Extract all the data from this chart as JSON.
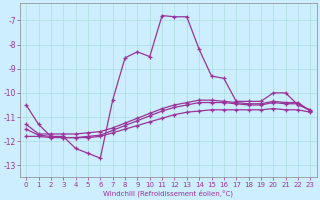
{
  "xlabel": "Windchill (Refroidissement éolien,°C)",
  "bg_color": "#cceeff",
  "grid_color": "#aadddd",
  "line_color": "#993399",
  "ylim": [
    -13.5,
    -6.3
  ],
  "xlim": [
    -0.5,
    23.5
  ],
  "yticks": [
    -13,
    -12,
    -11,
    -10,
    -9,
    -8,
    -7
  ],
  "xticks": [
    0,
    1,
    2,
    3,
    4,
    5,
    6,
    7,
    8,
    9,
    10,
    11,
    12,
    13,
    14,
    15,
    16,
    17,
    18,
    19,
    20,
    21,
    22,
    23
  ],
  "series": [
    {
      "x": [
        0,
        1,
        2,
        3,
        4,
        5,
        6,
        7,
        8,
        9,
        10,
        11,
        12,
        13,
        14,
        15,
        16,
        17,
        18,
        19,
        20,
        21,
        22,
        23
      ],
      "y": [
        -10.5,
        -11.3,
        -11.8,
        -11.8,
        -12.3,
        -12.5,
        -12.7,
        -10.3,
        -8.55,
        -8.3,
        -8.5,
        -6.8,
        -6.85,
        -6.85,
        -8.2,
        -9.3,
        -9.4,
        -10.35,
        -10.35,
        -10.35,
        -10.0,
        -10.0,
        -10.5,
        -10.7
      ]
    },
    {
      "x": [
        0,
        1,
        2,
        3,
        4,
        5,
        6,
        7,
        8,
        9,
        10,
        11,
        12,
        13,
        14,
        15,
        16,
        17,
        18,
        19,
        20,
        21,
        22,
        23
      ],
      "y": [
        -11.8,
        -11.8,
        -11.85,
        -11.85,
        -11.85,
        -11.85,
        -11.8,
        -11.65,
        -11.5,
        -11.35,
        -11.2,
        -11.05,
        -10.9,
        -10.8,
        -10.75,
        -10.7,
        -10.7,
        -10.7,
        -10.7,
        -10.7,
        -10.65,
        -10.7,
        -10.7,
        -10.8
      ]
    },
    {
      "x": [
        0,
        1,
        2,
        3,
        4,
        5,
        6,
        7,
        8,
        9,
        10,
        11,
        12,
        13,
        14,
        15,
        16,
        17,
        18,
        19,
        20,
        21,
        22,
        23
      ],
      "y": [
        -11.5,
        -11.75,
        -11.8,
        -11.85,
        -11.85,
        -11.8,
        -11.75,
        -11.55,
        -11.35,
        -11.15,
        -10.95,
        -10.75,
        -10.6,
        -10.5,
        -10.4,
        -10.4,
        -10.4,
        -10.45,
        -10.5,
        -10.5,
        -10.4,
        -10.45,
        -10.45,
        -10.75
      ]
    },
    {
      "x": [
        0,
        1,
        2,
        3,
        4,
        5,
        6,
        7,
        8,
        9,
        10,
        11,
        12,
        13,
        14,
        15,
        16,
        17,
        18,
        19,
        20,
        21,
        22,
        23
      ],
      "y": [
        -11.3,
        -11.7,
        -11.7,
        -11.7,
        -11.7,
        -11.65,
        -11.6,
        -11.45,
        -11.25,
        -11.05,
        -10.85,
        -10.65,
        -10.5,
        -10.4,
        -10.3,
        -10.3,
        -10.35,
        -10.4,
        -10.45,
        -10.45,
        -10.35,
        -10.4,
        -10.4,
        -10.75
      ]
    }
  ]
}
